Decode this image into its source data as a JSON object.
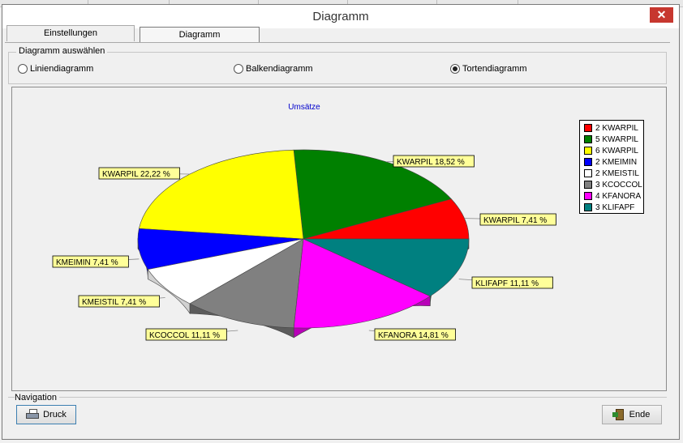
{
  "window": {
    "title": "Diagramm"
  },
  "tabs": [
    {
      "label": "Einstellungen"
    },
    {
      "label": "Diagramm"
    }
  ],
  "select_group": {
    "label": "Diagramm auswählen",
    "options": [
      {
        "label": "Liniendiagramm",
        "checked": false
      },
      {
        "label": "Balkendiagramm",
        "checked": false
      },
      {
        "label": "Tortendiagramm",
        "checked": true
      }
    ]
  },
  "navigation": {
    "label": "Navigation",
    "print_label": "Druck",
    "end_label": "Ende"
  },
  "chart_data": {
    "type": "pie",
    "title": "Umsätze",
    "legend_position": "right",
    "slices": [
      {
        "legend": "2 KWARPIL",
        "label": "KWARPIL 7,41 %",
        "value": 7.41,
        "color": "#ff0000"
      },
      {
        "legend": "5 KWARPIL",
        "label": "KWARPIL 18,52 %",
        "value": 18.52,
        "color": "#008000"
      },
      {
        "legend": "6 KWARPIL",
        "label": "KWARPIL 22,22 %",
        "value": 22.22,
        "color": "#ffff00"
      },
      {
        "legend": "2 KMEIMIN",
        "label": "KMEIMIN 7,41 %",
        "value": 7.41,
        "color": "#0000ff"
      },
      {
        "legend": "2 KMEISTIL",
        "label": "KMEISTIL 7,41 %",
        "value": 7.41,
        "color": "#ffffff"
      },
      {
        "legend": "3 KCOCCOL",
        "label": "KCOCCOL 11,11 %",
        "value": 11.11,
        "color": "#808080"
      },
      {
        "legend": "4 KFANORA",
        "label": "KFANORA 14,81 %",
        "value": 14.81,
        "color": "#ff00ff"
      },
      {
        "legend": "3 KLIFAPF",
        "label": "KLIFAPF 11,11 %",
        "value": 11.11,
        "color": "#008080"
      }
    ]
  }
}
